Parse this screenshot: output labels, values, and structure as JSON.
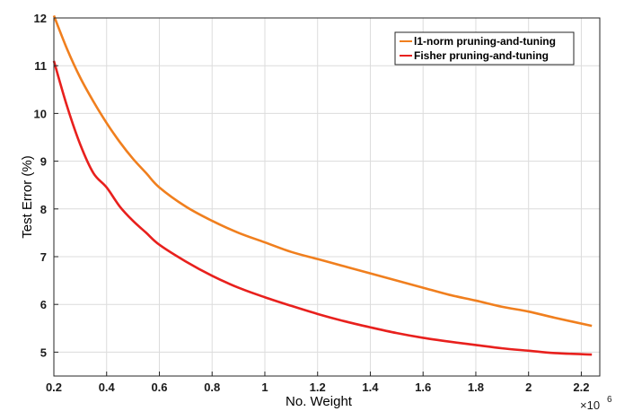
{
  "chart_data": {
    "type": "line",
    "xlabel": "No. Weight",
    "ylabel": "Test Error (%)",
    "x_multiplier_label": "×10",
    "x_multiplier_exponent": "6",
    "xlim": [
      0.2,
      2.27
    ],
    "ylim": [
      4.5,
      12
    ],
    "x_ticks": [
      0.2,
      0.4,
      0.6,
      0.8,
      1,
      1.2,
      1.4,
      1.6,
      1.8,
      2,
      2.2
    ],
    "x_tick_labels": [
      "0.2",
      "0.4",
      "0.6",
      "0.8",
      "1",
      "1.2",
      "1.4",
      "1.6",
      "1.8",
      "2",
      "2.2"
    ],
    "y_ticks": [
      5,
      6,
      7,
      8,
      9,
      10,
      11,
      12
    ],
    "y_tick_labels": [
      "5",
      "6",
      "7",
      "8",
      "9",
      "10",
      "11",
      "12"
    ],
    "grid": true,
    "legend_position": "top-right",
    "series": [
      {
        "name": "l1-norm pruning-and-tuning",
        "color": "#f07f1e",
        "x": [
          0.2,
          0.25,
          0.3,
          0.35,
          0.4,
          0.45,
          0.5,
          0.55,
          0.6,
          0.7,
          0.8,
          0.9,
          1.0,
          1.1,
          1.2,
          1.3,
          1.4,
          1.5,
          1.6,
          1.7,
          1.8,
          1.9,
          2.0,
          2.1,
          2.24
        ],
        "y": [
          12.05,
          11.35,
          10.75,
          10.25,
          9.8,
          9.4,
          9.05,
          8.75,
          8.45,
          8.05,
          7.75,
          7.5,
          7.3,
          7.1,
          6.95,
          6.8,
          6.65,
          6.5,
          6.35,
          6.2,
          6.08,
          5.95,
          5.85,
          5.72,
          5.55
        ]
      },
      {
        "name": "Fisher pruning-and-tuning",
        "color": "#e8201d",
        "x": [
          0.2,
          0.25,
          0.3,
          0.35,
          0.4,
          0.45,
          0.5,
          0.55,
          0.6,
          0.7,
          0.8,
          0.9,
          1.0,
          1.1,
          1.2,
          1.3,
          1.4,
          1.5,
          1.6,
          1.7,
          1.8,
          1.9,
          2.0,
          2.1,
          2.24
        ],
        "y": [
          11.1,
          10.15,
          9.35,
          8.75,
          8.45,
          8.05,
          7.75,
          7.5,
          7.25,
          6.9,
          6.6,
          6.35,
          6.15,
          5.97,
          5.8,
          5.65,
          5.52,
          5.4,
          5.3,
          5.22,
          5.15,
          5.08,
          5.03,
          4.98,
          4.95
        ]
      }
    ]
  }
}
